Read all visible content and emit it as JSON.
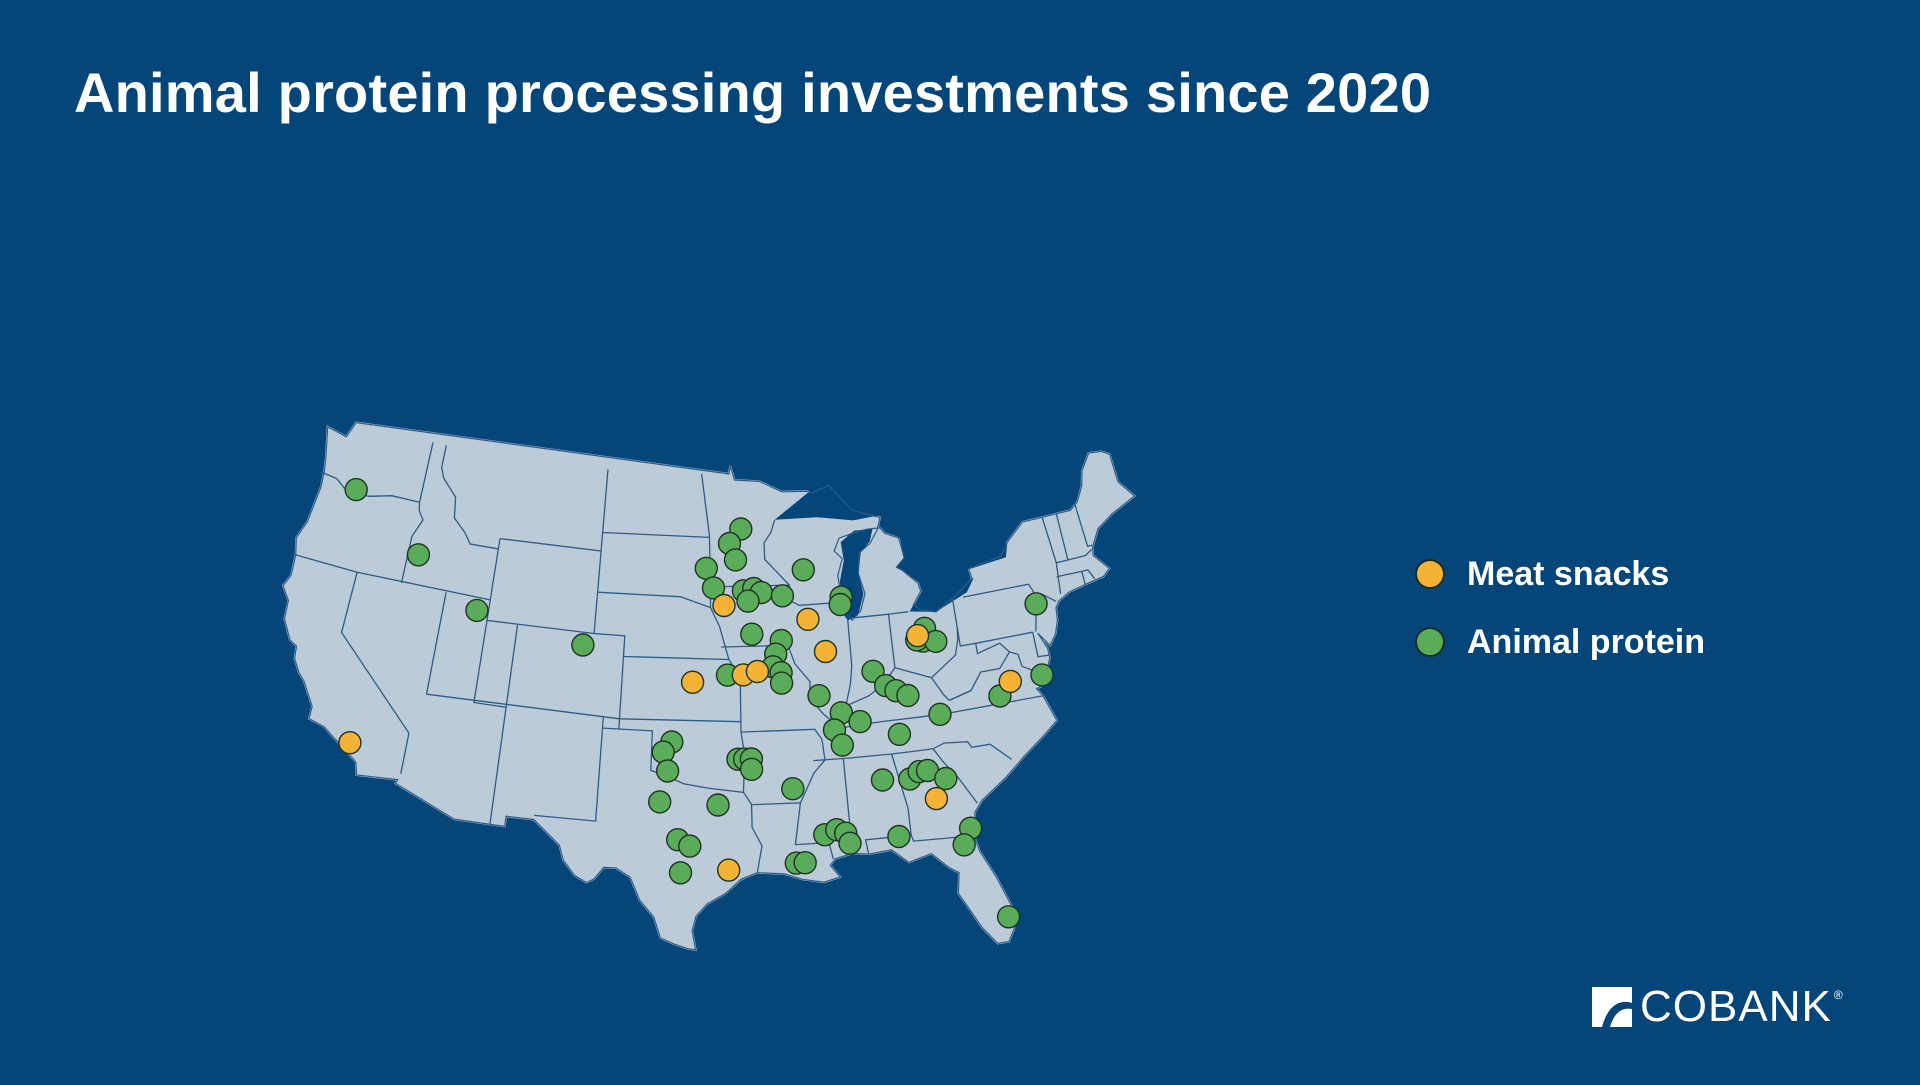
{
  "title": "Animal protein processing investments since 2020",
  "legend": {
    "items": [
      {
        "label": "Meat snacks",
        "color": "#f5b335"
      },
      {
        "label": "Animal protein",
        "color": "#5aac5b"
      }
    ]
  },
  "map": {
    "region": "contiguous-united-states",
    "land_color": "#bccbd8",
    "border_color": "#2e5a86",
    "ocean_color": "#05467a"
  },
  "logo": {
    "text": "COBANK",
    "registered": "®"
  },
  "markers": {
    "meat_snacks": [
      {
        "place": "Los Angeles, CA",
        "lat": 33.95,
        "lon": -117.9
      },
      {
        "place": "Central Kansas",
        "lat": 38.9,
        "lon": -97.6
      },
      {
        "place": "NW Iowa",
        "lat": 42.6,
        "lon": -95.6
      },
      {
        "place": "Eastern Iowa",
        "lat": 41.8,
        "lon": -90.1
      },
      {
        "place": "Kansas City area",
        "lat": 39.25,
        "lon": -94.4
      },
      {
        "place": "Kansas City MO",
        "lat": 39.4,
        "lon": -93.5
      },
      {
        "place": "Central Illinois",
        "lat": 40.2,
        "lon": -89.1
      },
      {
        "place": "Ohio",
        "lat": 40.5,
        "lon": -83.1
      },
      {
        "place": "Virginia",
        "lat": 37.6,
        "lon": -77.8
      },
      {
        "place": "Georgia",
        "lat": 32.6,
        "lon": -83.3
      },
      {
        "place": "Houston, TX",
        "lat": 29.85,
        "lon": -95.4
      }
    ],
    "animal_protein": [
      {
        "lat": 45.85,
        "lon": -121.5
      },
      {
        "lat": 43.5,
        "lon": -116.3
      },
      {
        "lat": 41.4,
        "lon": -111.8
      },
      {
        "lat": 40.4,
        "lon": -104.7
      },
      {
        "lat": 46.3,
        "lon": -94.4
      },
      {
        "lat": 45.6,
        "lon": -95.2
      },
      {
        "lat": 44.8,
        "lon": -94.8
      },
      {
        "lat": 44.4,
        "lon": -96.8
      },
      {
        "lat": 43.45,
        "lon": -96.3
      },
      {
        "lat": 43.3,
        "lon": -94.3
      },
      {
        "lat": 43.4,
        "lon": -93.6
      },
      {
        "lat": 43.2,
        "lon": -93.1
      },
      {
        "lat": 42.8,
        "lon": -94.0
      },
      {
        "lat": 44.2,
        "lon": -90.2
      },
      {
        "lat": 43.0,
        "lon": -91.7
      },
      {
        "lat": 42.75,
        "lon": -87.8
      },
      {
        "lat": 42.4,
        "lon": -87.9
      },
      {
        "lat": 40.85,
        "lon": -91.9
      },
      {
        "lat": 41.2,
        "lon": -93.8
      },
      {
        "lat": 39.25,
        "lon": -95.4
      },
      {
        "lat": 40.2,
        "lon": -92.3
      },
      {
        "lat": 39.6,
        "lon": -92.5
      },
      {
        "lat": 39.3,
        "lon": -92.0
      },
      {
        "lat": 38.8,
        "lon": -92.0
      },
      {
        "lat": 38.1,
        "lon": -89.7
      },
      {
        "lat": 39.05,
        "lon": -86.2
      },
      {
        "lat": 38.3,
        "lon": -85.5
      },
      {
        "lat": 38.0,
        "lon": -84.9
      },
      {
        "lat": 37.2,
        "lon": -88.4
      },
      {
        "lat": 36.7,
        "lon": -87.3
      },
      {
        "lat": 36.4,
        "lon": -88.9
      },
      {
        "lat": 35.65,
        "lon": -88.5
      },
      {
        "lat": 40.2,
        "lon": -82.8
      },
      {
        "lat": 40.3,
        "lon": -83.2
      },
      {
        "lat": 40.8,
        "lon": -82.6
      },
      {
        "lat": 40.1,
        "lon": -82.0
      },
      {
        "lat": 37.7,
        "lon": -84.2
      },
      {
        "lat": 36.6,
        "lon": -82.4
      },
      {
        "lat": 35.9,
        "lon": -85.0
      },
      {
        "lat": 37.0,
        "lon": -78.6
      },
      {
        "lat": 37.6,
        "lon": -75.8
      },
      {
        "lat": 41.0,
        "lon": -75.2
      },
      {
        "lat": 36.0,
        "lon": -98.8
      },
      {
        "lat": 35.5,
        "lon": -99.3
      },
      {
        "lat": 34.6,
        "lon": -99.0
      },
      {
        "lat": 33.1,
        "lon": -99.4
      },
      {
        "lat": 33.0,
        "lon": -96.0
      },
      {
        "lat": 31.3,
        "lon": -98.3
      },
      {
        "lat": 31.0,
        "lon": -97.6
      },
      {
        "lat": 29.7,
        "lon": -98.1
      },
      {
        "lat": 35.2,
        "lon": -94.8
      },
      {
        "lat": 35.2,
        "lon": -94.4
      },
      {
        "lat": 35.2,
        "lon": -94.0
      },
      {
        "lat": 34.7,
        "lon": -94.0
      },
      {
        "lat": 33.7,
        "lon": -91.6
      },
      {
        "lat": 30.1,
        "lon": -91.6
      },
      {
        "lat": 30.1,
        "lon": -91.1
      },
      {
        "lat": 31.4,
        "lon": -89.9
      },
      {
        "lat": 31.6,
        "lon": -89.2
      },
      {
        "lat": 31.4,
        "lon": -88.7
      },
      {
        "lat": 30.9,
        "lon": -88.5
      },
      {
        "lat": 31.0,
        "lon": -85.7
      },
      {
        "lat": 33.8,
        "lon": -86.3
      },
      {
        "lat": 33.7,
        "lon": -84.7
      },
      {
        "lat": 34.0,
        "lon": -84.1
      },
      {
        "lat": 34.0,
        "lon": -83.6
      },
      {
        "lat": 33.5,
        "lon": -82.6
      },
      {
        "lat": 30.95,
        "lon": -81.6
      },
      {
        "lat": 30.2,
        "lon": -82.1
      },
      {
        "lat": 26.4,
        "lon": -80.3
      }
    ]
  }
}
